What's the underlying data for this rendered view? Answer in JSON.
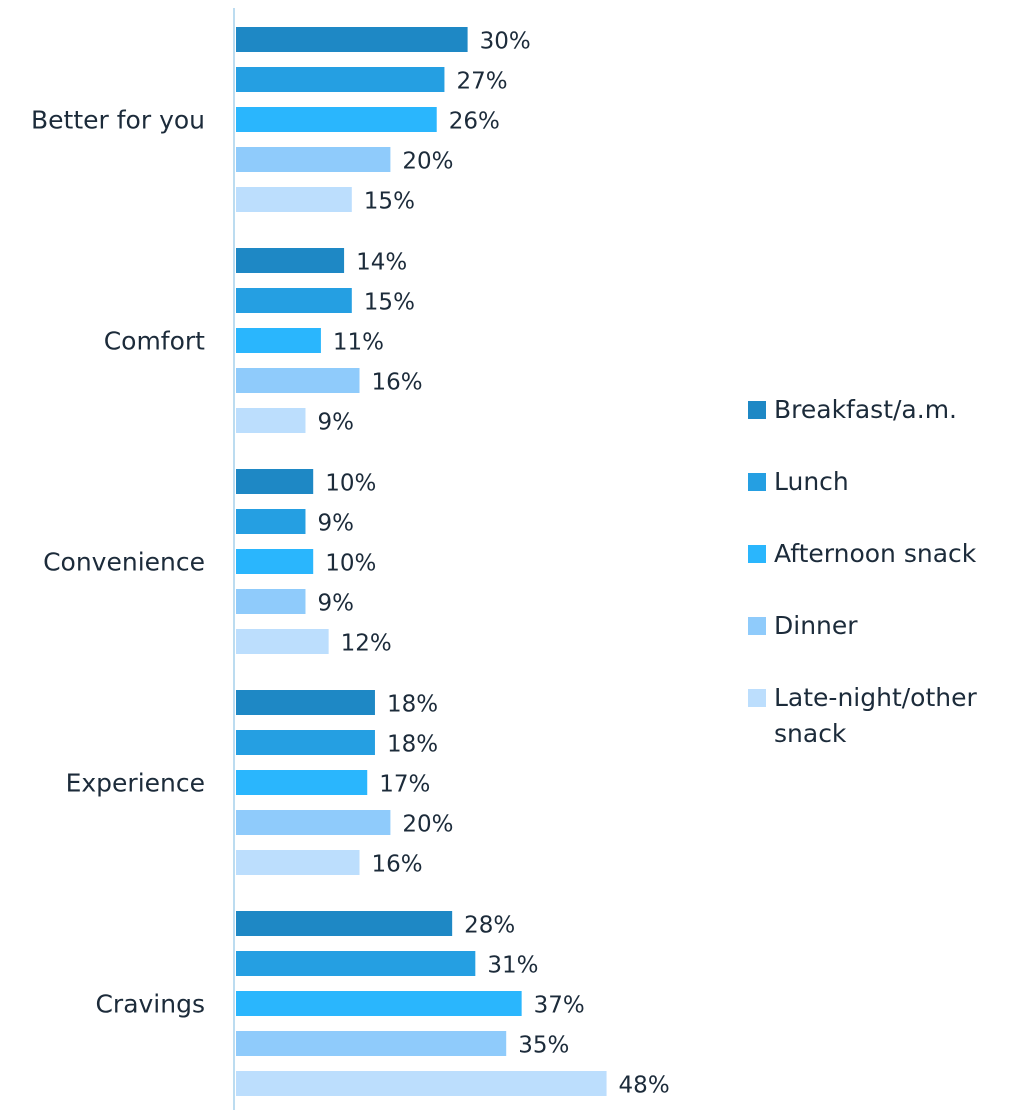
{
  "chart_data": {
    "type": "bar",
    "orientation": "horizontal",
    "categories": [
      "Better for you",
      "Comfort",
      "Convenience",
      "Experience",
      "Cravings"
    ],
    "series": [
      {
        "name": "Breakfast/a.m.",
        "color": "#1e88c5",
        "values": [
          30,
          14,
          10,
          18,
          28
        ],
        "labels": [
          "30%",
          "14%",
          "10%",
          "18%",
          "28%"
        ]
      },
      {
        "name": "Lunch",
        "color": "#259fe2",
        "values": [
          27,
          15,
          9,
          18,
          31
        ],
        "labels": [
          "27%",
          "15%",
          "9%",
          "18%",
          "31%"
        ]
      },
      {
        "name": "Afternoon snack",
        "color": "#2ab6fd",
        "values": [
          26,
          11,
          10,
          17,
          37
        ],
        "labels": [
          "26%",
          "11%",
          "10%",
          "17%",
          "37%"
        ]
      },
      {
        "name": "Dinner",
        "color": "#8fcbfb",
        "values": [
          20,
          16,
          9,
          20,
          35
        ],
        "labels": [
          "20%",
          "16%",
          "9%",
          "20%",
          "35%"
        ]
      },
      {
        "name": "Late-night/other snack",
        "color": "#bcdefd",
        "values": [
          15,
          9,
          12,
          16,
          48
        ],
        "labels": [
          "15%",
          "9%",
          "12%",
          "16%",
          "48%"
        ]
      }
    ],
    "xlim": [
      0,
      60
    ],
    "grid": false,
    "legend_position": "right",
    "axis_color": "#bcdcf0",
    "text_color": "#1c2b3a"
  }
}
